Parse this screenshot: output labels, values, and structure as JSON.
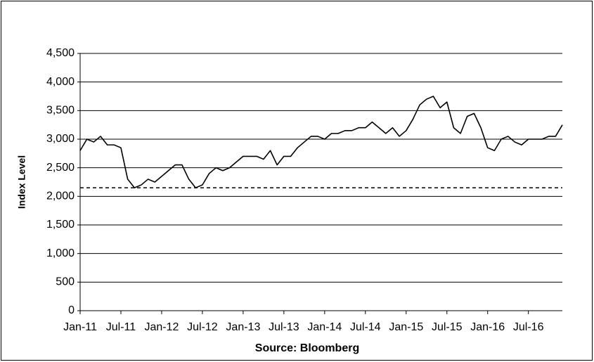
{
  "chart_data": {
    "type": "line",
    "x_label": "Source: Bloomberg",
    "y_label": "Index Level",
    "x": [
      "2011-01",
      "2011-02",
      "2011-03",
      "2011-04",
      "2011-05",
      "2011-06",
      "2011-07",
      "2011-08",
      "2011-09",
      "2011-10",
      "2011-11",
      "2011-12",
      "2012-01",
      "2012-02",
      "2012-03",
      "2012-04",
      "2012-05",
      "2012-06",
      "2012-07",
      "2012-08",
      "2012-09",
      "2012-10",
      "2012-11",
      "2012-12",
      "2013-01",
      "2013-02",
      "2013-03",
      "2013-04",
      "2013-05",
      "2013-06",
      "2013-07",
      "2013-08",
      "2013-09",
      "2013-10",
      "2013-11",
      "2013-12",
      "2014-01",
      "2014-02",
      "2014-03",
      "2014-04",
      "2014-05",
      "2014-06",
      "2014-07",
      "2014-08",
      "2014-09",
      "2014-10",
      "2014-11",
      "2014-12",
      "2015-01",
      "2015-02",
      "2015-03",
      "2015-04",
      "2015-05",
      "2015-06",
      "2015-07",
      "2015-08",
      "2015-09",
      "2015-10",
      "2015-11",
      "2015-12",
      "2016-01",
      "2016-02",
      "2016-03",
      "2016-04",
      "2016-05",
      "2016-06",
      "2016-07",
      "2016-08",
      "2016-09",
      "2016-10",
      "2016-11",
      "2016-12"
    ],
    "series": [
      {
        "color": "#000000",
        "values": [
          2800,
          3000,
          2950,
          3050,
          2900,
          2900,
          2850,
          2300,
          2150,
          2200,
          2300,
          2250,
          2350,
          2450,
          2550,
          2550,
          2300,
          2150,
          2200,
          2400,
          2500,
          2450,
          2500,
          2600,
          2700,
          2700,
          2700,
          2650,
          2800,
          2550,
          2700,
          2700,
          2850,
          2950,
          3050,
          3050,
          3000,
          3100,
          3100,
          3150,
          3150,
          3200,
          3200,
          3300,
          3200,
          3100,
          3200,
          3050,
          3150,
          3350,
          3600,
          3700,
          3750,
          3550,
          3650,
          3200,
          3100,
          3400,
          3450,
          3200,
          2850,
          2800,
          3000,
          3050,
          2950,
          2900,
          3000,
          3000,
          3000,
          3050,
          3050,
          3250
        ]
      }
    ],
    "reference_line": {
      "value": 2150,
      "color": "#000000",
      "style": "dashed"
    },
    "xlim": [
      "2011-01",
      "2016-12"
    ],
    "xticks": [
      {
        "value": "2011-01",
        "label": "Jan-11"
      },
      {
        "value": "2011-07",
        "label": "Jul-11"
      },
      {
        "value": "2012-01",
        "label": "Jan-12"
      },
      {
        "value": "2012-07",
        "label": "Jul-12"
      },
      {
        "value": "2013-01",
        "label": "Jan-13"
      },
      {
        "value": "2013-07",
        "label": "Jul-13"
      },
      {
        "value": "2014-01",
        "label": "Jan-14"
      },
      {
        "value": "2014-07",
        "label": "Jul-14"
      },
      {
        "value": "2015-01",
        "label": "Jan-15"
      },
      {
        "value": "2015-07",
        "label": "Jul-15"
      },
      {
        "value": "2016-01",
        "label": "Jan-16"
      },
      {
        "value": "2016-07",
        "label": "Jul-16"
      }
    ],
    "ylim": [
      0,
      4500
    ],
    "yticks": [
      0,
      500,
      {
        "value": 1000,
        "label": "1,000"
      },
      {
        "value": 1500,
        "label": "1,500"
      },
      {
        "value": 2000,
        "label": "2,000"
      },
      {
        "value": 2500,
        "label": "2,500"
      },
      {
        "value": 3000,
        "label": "3,000"
      },
      {
        "value": 3500,
        "label": "3,500"
      },
      {
        "value": 4000,
        "label": "4,000"
      },
      {
        "value": 4500,
        "label": "4,500"
      }
    ],
    "grid": true
  }
}
